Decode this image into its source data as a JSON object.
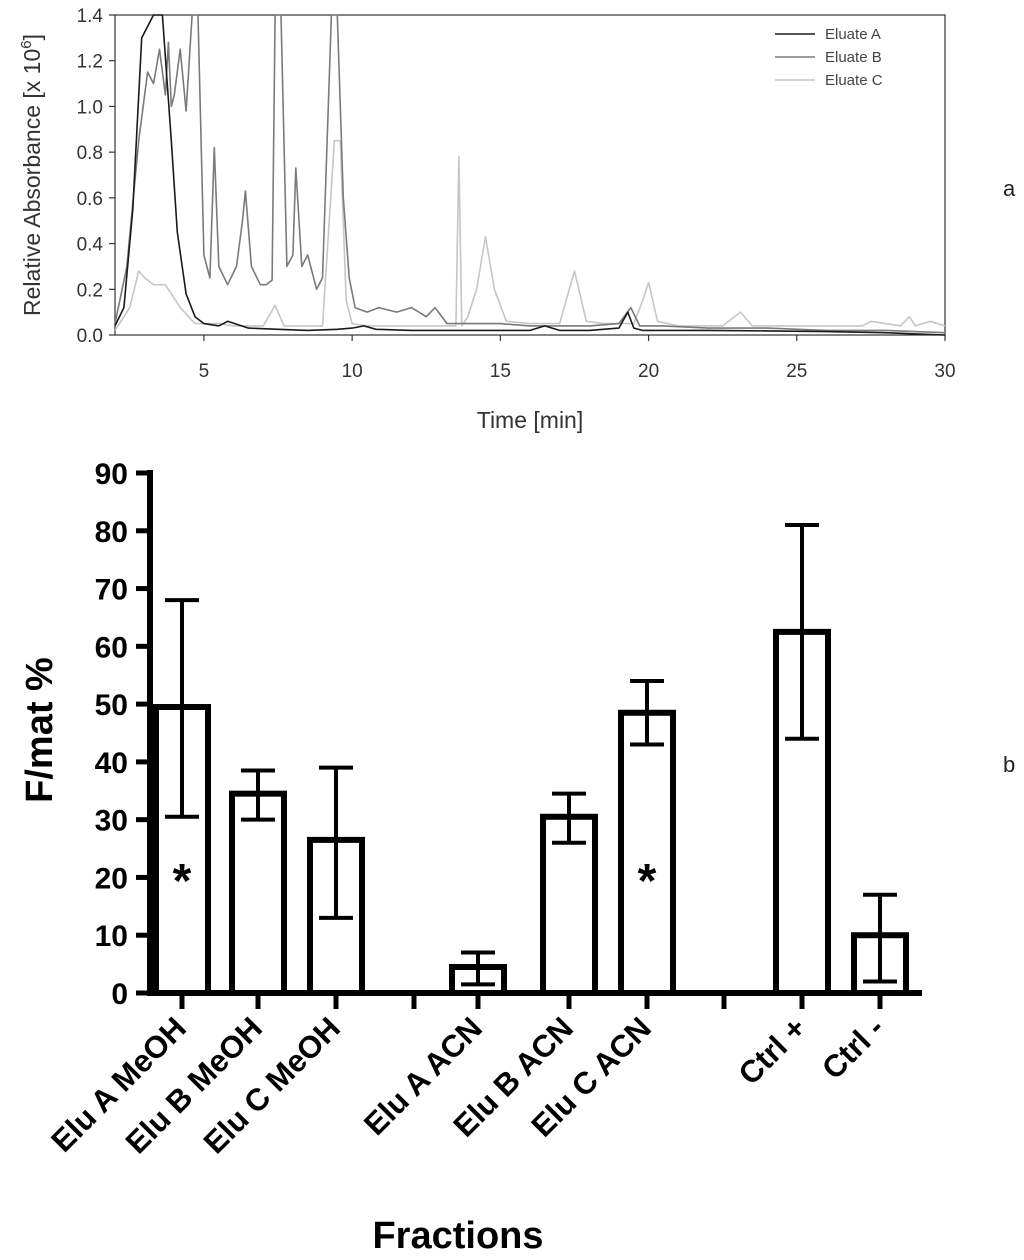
{
  "chart_data": [
    {
      "panel": "a",
      "type": "line",
      "xlabel": "Time [min]",
      "ylabel": "Relative Absorbance [x 10",
      "ylabel_sup": "6",
      "ylabel_close": "]",
      "xlim": [
        2,
        30
      ],
      "ylim": [
        0,
        1.4
      ],
      "xticks": [
        5,
        10,
        15,
        20,
        25,
        30
      ],
      "yticks": [
        "0.0",
        "0.2",
        "0.4",
        "0.6",
        "0.8",
        "1.0",
        "1.2",
        "1.4"
      ],
      "legend_position": "top-right",
      "series": [
        {
          "name": "Eluate A",
          "color": "#1a1a1a",
          "x": [
            2.0,
            2.3,
            2.6,
            2.9,
            3.3,
            3.6,
            3.9,
            4.1,
            4.4,
            4.7,
            5.0,
            5.5,
            5.8,
            6.5,
            7.5,
            8.5,
            9.5,
            10.0,
            10.4,
            10.8,
            12.0,
            14.0,
            16.0,
            16.5,
            17.0,
            18.0,
            19.0,
            19.3,
            19.5,
            19.8,
            20.5,
            22.0,
            24.0,
            26.0,
            28.0,
            29.0,
            30.0
          ],
          "y": [
            0.04,
            0.12,
            0.55,
            1.3,
            1.45,
            1.42,
            0.85,
            0.45,
            0.18,
            0.08,
            0.05,
            0.04,
            0.06,
            0.03,
            0.025,
            0.02,
            0.025,
            0.03,
            0.04,
            0.025,
            0.02,
            0.02,
            0.02,
            0.04,
            0.02,
            0.02,
            0.03,
            0.1,
            0.03,
            0.02,
            0.02,
            0.02,
            0.018,
            0.015,
            0.01,
            0.005,
            0.0
          ]
        },
        {
          "name": "Eluate B",
          "color": "#7a7a7a",
          "x": [
            2.0,
            2.4,
            2.8,
            3.1,
            3.3,
            3.5,
            3.7,
            3.8,
            3.9,
            4.0,
            4.2,
            4.4,
            4.6,
            4.8,
            5.0,
            5.2,
            5.35,
            5.5,
            5.8,
            6.1,
            6.3,
            6.4,
            6.6,
            6.9,
            7.1,
            7.3,
            7.4,
            7.6,
            7.8,
            8.0,
            8.1,
            8.3,
            8.5,
            8.8,
            9.0,
            9.3,
            9.5,
            9.7,
            9.9,
            10.1,
            10.5,
            10.9,
            11.5,
            12.0,
            12.5,
            12.8,
            13.2,
            14.0,
            15.0,
            16.0,
            17.0,
            18.0,
            19.0,
            19.4,
            19.7,
            20.5,
            22.0,
            24.0,
            26.0,
            28.0,
            30.0
          ],
          "y": [
            0.05,
            0.3,
            0.85,
            1.15,
            1.1,
            1.25,
            1.05,
            1.28,
            1.0,
            1.05,
            1.25,
            0.98,
            1.4,
            1.4,
            0.35,
            0.25,
            0.82,
            0.3,
            0.22,
            0.3,
            0.5,
            0.63,
            0.3,
            0.22,
            0.22,
            0.24,
            1.4,
            1.4,
            0.3,
            0.35,
            0.73,
            0.3,
            0.35,
            0.2,
            0.25,
            1.4,
            1.4,
            0.6,
            0.25,
            0.12,
            0.1,
            0.12,
            0.1,
            0.12,
            0.08,
            0.12,
            0.05,
            0.05,
            0.05,
            0.04,
            0.04,
            0.04,
            0.05,
            0.12,
            0.04,
            0.04,
            0.03,
            0.03,
            0.02,
            0.02,
            0.01
          ]
        },
        {
          "name": "Eluate C",
          "color": "#c6c6c6",
          "x": [
            2.0,
            2.5,
            2.8,
            3.0,
            3.3,
            3.7,
            4.2,
            4.7,
            5.0,
            5.5,
            6.0,
            7.0,
            7.4,
            7.7,
            8.0,
            9.0,
            9.4,
            9.6,
            9.8,
            10.0,
            10.5,
            11.0,
            12.0,
            13.0,
            13.5,
            13.6,
            13.7,
            13.9,
            14.2,
            14.5,
            14.8,
            15.2,
            16.0,
            17.0,
            17.5,
            17.9,
            18.5,
            19.5,
            19.8,
            20.0,
            20.3,
            21.0,
            22.5,
            23.1,
            23.5,
            24.5,
            26.0,
            27.2,
            27.5,
            28.5,
            28.8,
            29.0,
            29.5,
            30.0
          ],
          "y": [
            0.02,
            0.12,
            0.28,
            0.25,
            0.22,
            0.22,
            0.12,
            0.05,
            0.05,
            0.05,
            0.04,
            0.04,
            0.13,
            0.04,
            0.04,
            0.04,
            0.85,
            0.85,
            0.15,
            0.05,
            0.04,
            0.04,
            0.04,
            0.04,
            0.04,
            0.78,
            0.04,
            0.08,
            0.2,
            0.43,
            0.2,
            0.06,
            0.05,
            0.05,
            0.28,
            0.06,
            0.05,
            0.05,
            0.15,
            0.23,
            0.06,
            0.04,
            0.04,
            0.1,
            0.04,
            0.04,
            0.04,
            0.04,
            0.06,
            0.04,
            0.08,
            0.04,
            0.06,
            0.04
          ]
        }
      ],
      "panel_label": "a"
    },
    {
      "panel": "b",
      "type": "bar",
      "xlabel": "Fractions",
      "ylabel": "F/mat  %",
      "ylim": [
        0,
        90
      ],
      "yticks": [
        "0",
        "10",
        "20",
        "30",
        "40",
        "50",
        "60",
        "70",
        "80",
        "90"
      ],
      "categories": [
        "Elu A MeOH",
        "Elu B MeOH",
        "Elu C MeOH",
        "Elu A ACN",
        "Elu B ACN",
        "Elu C ACN",
        "Ctrl +",
        "Ctrl -"
      ],
      "values": [
        49.5,
        34.5,
        26.5,
        4.5,
        30.5,
        48.5,
        62.5,
        10
      ],
      "error_low": [
        30.5,
        30,
        13,
        1.5,
        26,
        43,
        44,
        2
      ],
      "error_high": [
        68,
        38.5,
        39,
        7,
        34.5,
        54,
        81,
        17
      ],
      "significance": [
        "*",
        "",
        "",
        "",
        "",
        "*",
        "",
        ""
      ],
      "panel_label": "b"
    }
  ]
}
